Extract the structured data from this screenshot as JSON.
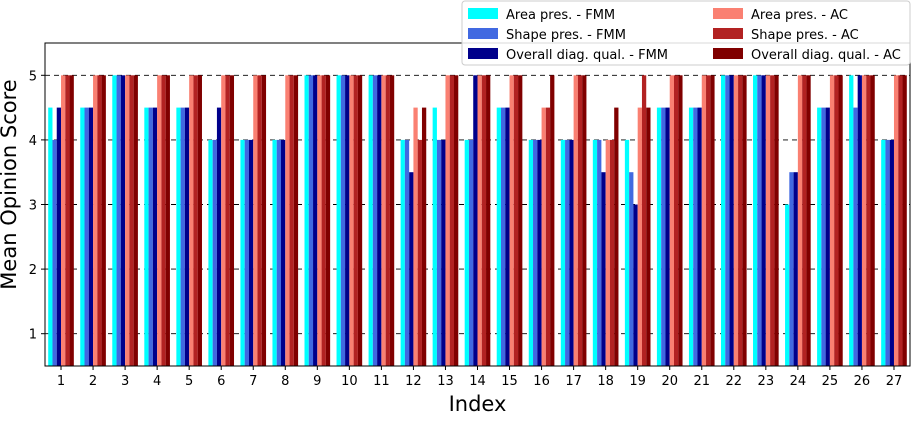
{
  "chart_data": {
    "type": "bar",
    "xlabel": "Index",
    "ylabel": "Mean Opinion Score",
    "ylim": [
      0.5,
      5.5
    ],
    "yticks": [
      1,
      2,
      3,
      4,
      5
    ],
    "grid": "horizontal dashed",
    "legend_position": "top-right",
    "categories": [
      "1",
      "2",
      "3",
      "4",
      "5",
      "6",
      "7",
      "8",
      "9",
      "10",
      "11",
      "12",
      "13",
      "14",
      "15",
      "16",
      "17",
      "18",
      "19",
      "20",
      "21",
      "22",
      "23",
      "24",
      "25",
      "26",
      "27"
    ],
    "series": [
      {
        "name": "Area pres. - FMM",
        "color": "#00ffff",
        "values": [
          4.5,
          4.5,
          5,
          4.5,
          4.5,
          4,
          4,
          4,
          5,
          5,
          5,
          4,
          4.5,
          4,
          4.5,
          4,
          4,
          4,
          4,
          4.5,
          4.5,
          5,
          5,
          3,
          4.5,
          5,
          4
        ]
      },
      {
        "name": "Shape pres. - FMM",
        "color": "#4169e1",
        "values": [
          4,
          4.5,
          5,
          4.5,
          4.5,
          4,
          4,
          4,
          5,
          5,
          5,
          4,
          4,
          4,
          4.5,
          4,
          4,
          4,
          3.5,
          4.5,
          4.5,
          5,
          5,
          3.5,
          4.5,
          4.5,
          4
        ]
      },
      {
        "name": "Overall diag. qual. - FMM",
        "color": "#00008b",
        "values": [
          4.5,
          4.5,
          5,
          4.5,
          4.5,
          4.5,
          4,
          4,
          5,
          5,
          5,
          3.5,
          4,
          5,
          4.5,
          4,
          4,
          3.5,
          3,
          4.5,
          4.5,
          5,
          5,
          3.5,
          4.5,
          5,
          4
        ]
      },
      {
        "name": "Area pres. - AC",
        "color": "#fa8072",
        "values": [
          5,
          5,
          5,
          5,
          5,
          5,
          5,
          5,
          5,
          5,
          5,
          4.5,
          5,
          5,
          5,
          4.5,
          5,
          4,
          4.5,
          5,
          5,
          5,
          5,
          5,
          5,
          5,
          5
        ]
      },
      {
        "name": "Shape pres. - AC",
        "color": "#b22222",
        "values": [
          5,
          5,
          5,
          5,
          5,
          5,
          5,
          5,
          5,
          5,
          5,
          4,
          5,
          5,
          5,
          4.5,
          5,
          4,
          5,
          5,
          5,
          5,
          5,
          5,
          5,
          5,
          5
        ]
      },
      {
        "name": "Overall diag. qual. - AC",
        "color": "#800000",
        "values": [
          5,
          5,
          5,
          5,
          5,
          5,
          5,
          5,
          5,
          5,
          5,
          4.5,
          5,
          5,
          5,
          5,
          5,
          4.5,
          4.5,
          5,
          5,
          5,
          5,
          5,
          5,
          5,
          5
        ]
      }
    ]
  }
}
